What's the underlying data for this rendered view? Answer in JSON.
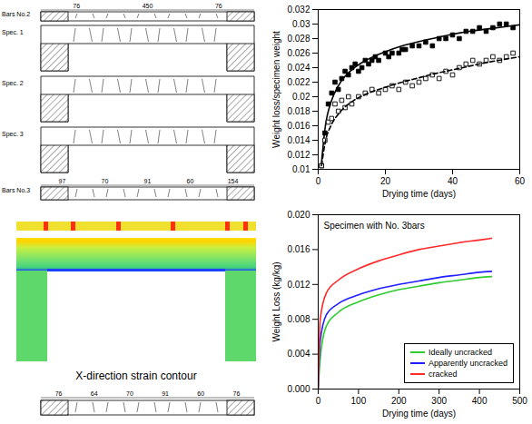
{
  "chart_data": [
    {
      "type": "scatter",
      "xlabel": "Drying time (days)",
      "ylabel": "Weight loss/specimen weight",
      "xlim": [
        0,
        60
      ],
      "xticks": [
        0,
        20,
        40,
        60
      ],
      "ylim": [
        0.01,
        0.032
      ],
      "yticks": [
        0.01,
        0.012,
        0.014,
        0.016,
        0.018,
        0.02,
        0.022,
        0.024,
        0.026,
        0.028,
        0.03,
        0.032
      ],
      "grid": false,
      "series": [
        {
          "type": "scatter",
          "marker": "square",
          "color": "#000000",
          "x": [
            1,
            2,
            3,
            4,
            5,
            6,
            7,
            8,
            9,
            10,
            11,
            12,
            13,
            14,
            15,
            16,
            17,
            18,
            20,
            21,
            22,
            24,
            25,
            26,
            28,
            30,
            32,
            34,
            36,
            38,
            40,
            42,
            44,
            46,
            48,
            50,
            52,
            54,
            56,
            58
          ],
          "values": [
            0.0105,
            0.015,
            0.019,
            0.0205,
            0.022,
            0.021,
            0.0225,
            0.0235,
            0.023,
            0.024,
            0.0245,
            0.0235,
            0.024,
            0.025,
            0.0245,
            0.025,
            0.0255,
            0.025,
            0.026,
            0.0255,
            0.026,
            0.026,
            0.0265,
            0.0265,
            0.027,
            0.027,
            0.0275,
            0.027,
            0.028,
            0.028,
            0.0285,
            0.028,
            0.029,
            0.029,
            0.0295,
            0.029,
            0.0295,
            0.03,
            0.03,
            0.0295
          ]
        },
        {
          "type": "line",
          "line_style": "solid",
          "color": "#000000",
          "x": [
            1,
            2,
            4,
            6,
            8,
            10,
            15,
            20,
            25,
            30,
            35,
            40,
            45,
            50,
            55,
            60
          ],
          "values": [
            0.011,
            0.0155,
            0.0195,
            0.0215,
            0.0228,
            0.0237,
            0.0252,
            0.0262,
            0.027,
            0.0276,
            0.0281,
            0.0286,
            0.029,
            0.0293,
            0.0296,
            0.0299
          ]
        },
        {
          "type": "scatter",
          "marker": "square-open",
          "color": "#000000",
          "x": [
            1,
            2,
            3,
            4,
            5,
            6,
            7,
            8,
            9,
            10,
            12,
            14,
            16,
            18,
            20,
            22,
            24,
            26,
            28,
            30,
            32,
            34,
            36,
            38,
            40,
            42,
            44,
            46,
            48,
            50,
            52,
            54,
            56,
            58
          ],
          "values": [
            0.0105,
            0.014,
            0.0165,
            0.017,
            0.019,
            0.018,
            0.0195,
            0.0185,
            0.02,
            0.019,
            0.02,
            0.0205,
            0.021,
            0.0205,
            0.021,
            0.0215,
            0.021,
            0.022,
            0.0215,
            0.022,
            0.0225,
            0.023,
            0.0225,
            0.0235,
            0.023,
            0.024,
            0.0245,
            0.025,
            0.0245,
            0.025,
            0.0255,
            0.025,
            0.0255,
            0.026
          ]
        },
        {
          "type": "line",
          "line_style": "dashed",
          "color": "#000000",
          "x": [
            1,
            2,
            4,
            6,
            8,
            10,
            15,
            20,
            25,
            30,
            35,
            40,
            45,
            50,
            55,
            60
          ],
          "values": [
            0.0105,
            0.0135,
            0.0162,
            0.0176,
            0.0186,
            0.0193,
            0.0205,
            0.0213,
            0.022,
            0.0226,
            0.0232,
            0.0237,
            0.0242,
            0.0247,
            0.0251,
            0.0255
          ]
        }
      ]
    },
    {
      "type": "line",
      "annotation": "Specimen with No. 3bars",
      "xlabel": "Drying time (days)",
      "ylabel": "Weight Loss (kg/kg)",
      "xlim": [
        0,
        500
      ],
      "xticks": [
        0,
        100,
        200,
        300,
        400,
        500
      ],
      "ylim": [
        0,
        0.02
      ],
      "yticks": [
        {
          "value": 0,
          "label": "0.000"
        },
        {
          "value": 0.004,
          "label": "0.004"
        },
        {
          "value": 0.008,
          "label": "0.008"
        },
        {
          "value": 0.012,
          "label": "0.012"
        },
        {
          "value": 0.016,
          "label": "0.016"
        },
        {
          "value": 0.02,
          "label": "0.020"
        }
      ],
      "grid": false,
      "legend": "bottom-right",
      "series": [
        {
          "name": "Ideally uncracked",
          "type": "line",
          "line_style": "solid",
          "color": "#2ecc2e",
          "x": [
            0,
            5,
            20,
            50,
            100,
            150,
            200,
            250,
            300,
            350,
            400,
            430
          ],
          "values": [
            0,
            0.0035,
            0.0072,
            0.0088,
            0.01,
            0.0108,
            0.0114,
            0.0118,
            0.0122,
            0.0125,
            0.0128,
            0.0129
          ]
        },
        {
          "name": "Apparently uncracked",
          "type": "line",
          "line_style": "solid",
          "color": "#1f1fff",
          "x": [
            0,
            5,
            20,
            50,
            100,
            150,
            200,
            250,
            300,
            350,
            400,
            430
          ],
          "values": [
            0,
            0.0055,
            0.0085,
            0.0098,
            0.0108,
            0.0115,
            0.012,
            0.0124,
            0.0128,
            0.0131,
            0.0134,
            0.0135
          ]
        },
        {
          "name": "cracked",
          "type": "line",
          "line_style": "solid",
          "color": "#ff2a2a",
          "x": [
            0,
            5,
            20,
            50,
            100,
            150,
            200,
            250,
            300,
            350,
            400,
            430
          ],
          "values": [
            0,
            0.008,
            0.011,
            0.0125,
            0.0138,
            0.0147,
            0.0154,
            0.016,
            0.0164,
            0.0168,
            0.0171,
            0.0173
          ]
        }
      ]
    }
  ],
  "drawings": {
    "top": [
      {
        "label": "Bars No.2",
        "dims": [
          "76",
          "450",
          "76"
        ]
      },
      {
        "label": "Spec. 1"
      },
      {
        "label": "Spec. 2"
      },
      {
        "label": "Spec. 3"
      },
      {
        "label": "Bars No.3",
        "dims": [
          "97",
          "70",
          "91",
          "60",
          "154"
        ]
      }
    ],
    "contour_label": "X-direction strain contour",
    "bottom": {
      "dims": [
        "76",
        "64",
        "70",
        "91",
        "60",
        "76"
      ]
    }
  }
}
